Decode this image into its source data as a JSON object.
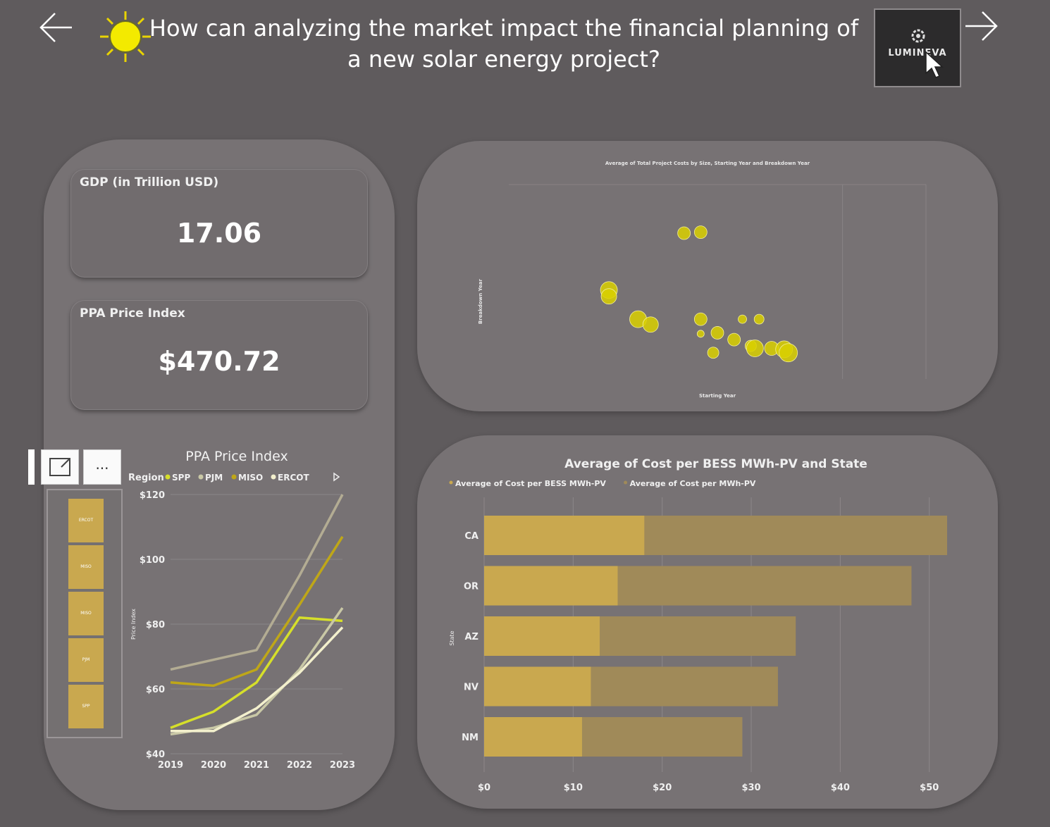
{
  "header": {
    "title": "How can analyzing the market impact the financial planning of a new solar energy project?",
    "back_icon": "arrow-left-icon",
    "forward_icon": "arrow-right-icon",
    "sun_icon": "sun-icon",
    "logo_text": "LUMINEVA"
  },
  "kpis": [
    {
      "label": "GDP (in Trillion USD)",
      "value": "17.06"
    },
    {
      "label": "PPA Price Index",
      "value": "$470.72"
    }
  ],
  "slicer": {
    "tools": [
      "focus-mode-icon",
      "more-options-icon"
    ],
    "more_label": "...",
    "items": [
      "ERCOT",
      "MISO",
      "MISO",
      "PJM",
      "SPP"
    ]
  },
  "colors": {
    "background": "#5f5b5d",
    "panel": "#777274",
    "accent_yellow": "#e6e000",
    "bar_primary": "#c9a84f",
    "bar_secondary": "#a08a59"
  },
  "chart_data": [
    {
      "type": "line",
      "title": "PPA Price Index",
      "legend_title": "Region",
      "legend_position": "top",
      "ylabel": "Price Index",
      "x": [
        "2019",
        "2020",
        "2021",
        "2022",
        "2023"
      ],
      "y_ticks": [
        "$40",
        "$60",
        "$80",
        "$100",
        "$120"
      ],
      "ylim": [
        40,
        120
      ],
      "series": [
        {
          "name": "SPP",
          "color": "#d6df2a",
          "values": [
            48,
            53,
            62,
            82,
            81
          ]
        },
        {
          "name": "PJM",
          "color": "#c9c8a6",
          "values": [
            46,
            48,
            52,
            66,
            85
          ]
        },
        {
          "name": "MISO",
          "color": "#bfa718",
          "values": [
            62,
            61,
            66,
            86,
            107
          ]
        },
        {
          "name": "ERCOT",
          "color": "#f3f0cd",
          "values": [
            47,
            47,
            54,
            65,
            79
          ]
        },
        {
          "name": "",
          "color": "#b3ac93",
          "values": [
            66,
            69,
            72,
            95,
            120
          ]
        }
      ]
    },
    {
      "type": "scatter",
      "title": "Average of Total Project Costs by Size, Starting Year and Breakdown Year",
      "xlabel": "Starting Year",
      "ylabel": "Breakdown Year",
      "grid": true,
      "points": [
        {
          "x": 2016.2,
          "y": 2040.0,
          "r": 9
        },
        {
          "x": 2016.6,
          "y": 2040.2,
          "r": 9
        },
        {
          "x": 2014.4,
          "y": 2028.3,
          "r": 12
        },
        {
          "x": 2014.4,
          "y": 2027.0,
          "r": 11
        },
        {
          "x": 2015.1,
          "y": 2022.3,
          "r": 12
        },
        {
          "x": 2015.4,
          "y": 2021.2,
          "r": 11
        },
        {
          "x": 2016.6,
          "y": 2022.3,
          "r": 9
        },
        {
          "x": 2017.6,
          "y": 2022.3,
          "r": 6
        },
        {
          "x": 2018.0,
          "y": 2022.3,
          "r": 7
        },
        {
          "x": 2016.6,
          "y": 2019.3,
          "r": 5
        },
        {
          "x": 2017.0,
          "y": 2019.5,
          "r": 9
        },
        {
          "x": 2017.4,
          "y": 2018.1,
          "r": 9
        },
        {
          "x": 2017.8,
          "y": 2016.8,
          "r": 8
        },
        {
          "x": 2017.9,
          "y": 2016.3,
          "r": 12
        },
        {
          "x": 2018.3,
          "y": 2016.3,
          "r": 10
        },
        {
          "x": 2018.6,
          "y": 2016.1,
          "r": 12
        },
        {
          "x": 2018.7,
          "y": 2015.4,
          "r": 13
        },
        {
          "x": 2016.9,
          "y": 2015.4,
          "r": 8
        }
      ]
    },
    {
      "type": "bar",
      "title": "Average of Cost per BESS MWh-PV and State",
      "legend": [
        "Average of Cost per BESS MWh-PV",
        "Average of Cost per MWh-PV"
      ],
      "legend_position": "top-left",
      "ylabel": "State",
      "categories": [
        "CA",
        "OR",
        "AZ",
        "NV",
        "NM"
      ],
      "series": [
        {
          "name": "Average of Cost per BESS MWh-PV",
          "color": "#c9a84f",
          "values": [
            18,
            15,
            13,
            12,
            11
          ]
        },
        {
          "name": "Average of Cost per MWh-PV",
          "color": "#a08a59",
          "values": [
            34,
            33,
            22,
            21,
            18
          ]
        }
      ],
      "x_ticks": [
        "$0",
        "$10",
        "$20",
        "$30",
        "$40",
        "$50"
      ],
      "xlim": [
        0,
        52
      ]
    }
  ]
}
